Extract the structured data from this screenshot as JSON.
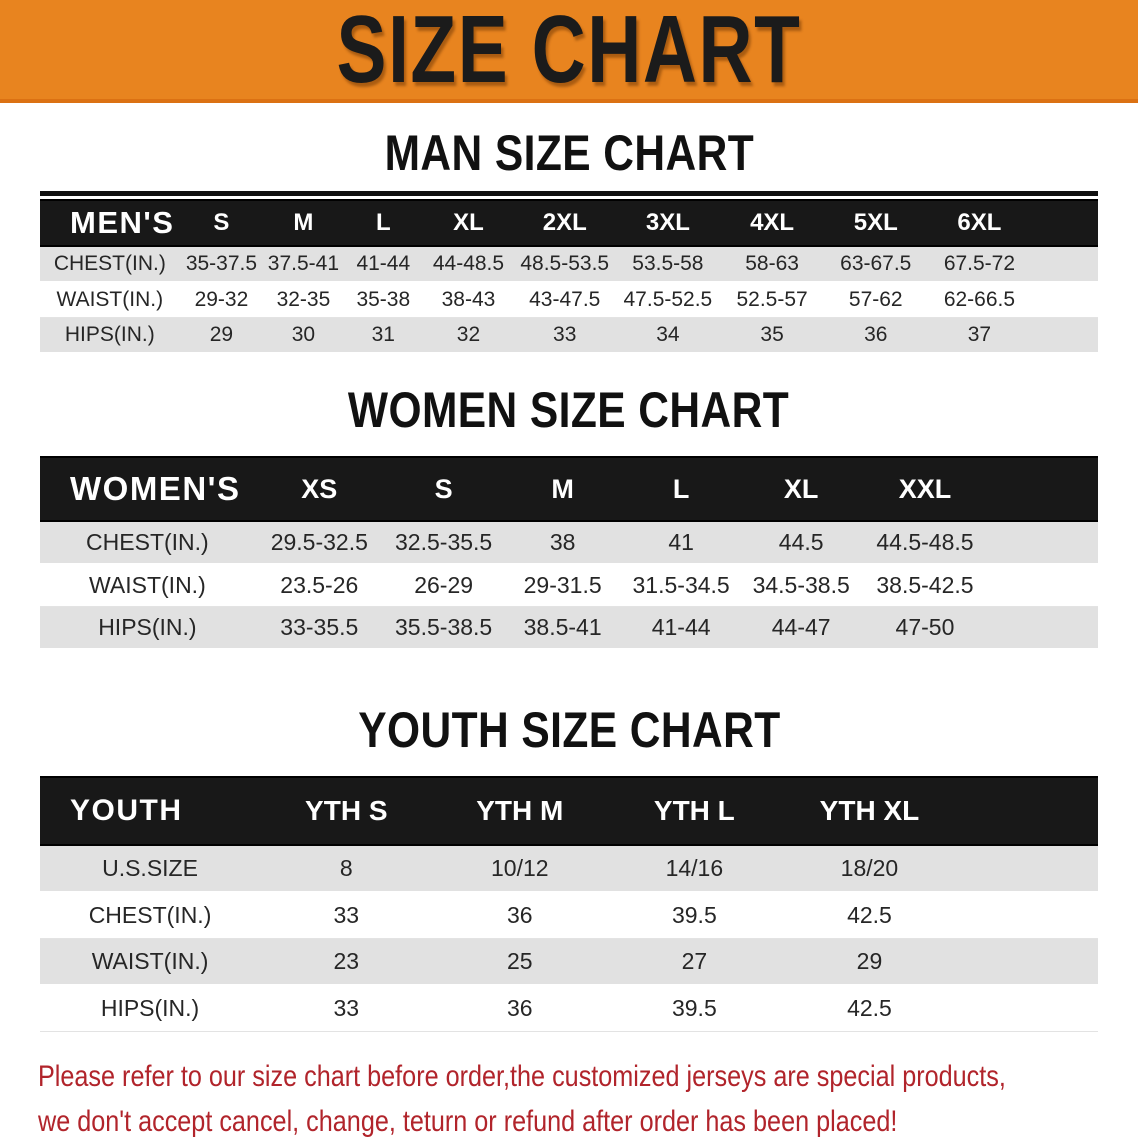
{
  "banner": {
    "title": "SIZE CHART",
    "bg_color": "#E8841F",
    "text_color": "#1b1b1b"
  },
  "sections": {
    "man": {
      "heading": "MAN SIZE CHART"
    },
    "women": {
      "heading": "WOMEN SIZE CHART"
    },
    "youth": {
      "heading": "YOUTH SIZE CHART"
    }
  },
  "colors": {
    "table_header_bg": "#181818",
    "row_gray": "#E1E1E1",
    "disclaimer_red": "#B1242B"
  },
  "tables": {
    "men": {
      "corner": "MEN'S",
      "sizes": [
        "S",
        "M",
        "L",
        "XL",
        "2XL",
        "3XL",
        "4XL",
        "5XL",
        "6XL"
      ],
      "rows": [
        {
          "label": "CHEST(IN.)",
          "shade": "gray",
          "values": [
            "35-37.5",
            "37.5-41",
            "41-44",
            "44-48.5",
            "48.5-53.5",
            "53.5-58",
            "58-63",
            "63-67.5",
            "67.5-72"
          ]
        },
        {
          "label": "WAIST(IN.)",
          "shade": "white",
          "values": [
            "29-32",
            "32-35",
            "35-38",
            "38-43",
            "43-47.5",
            "47.5-52.5",
            "52.5-57",
            "57-62",
            "62-66.5"
          ]
        },
        {
          "label": "HIPS(IN.)",
          "shade": "gray",
          "values": [
            "29",
            "30",
            "31",
            "32",
            "33",
            "34",
            "35",
            "36",
            "37"
          ]
        }
      ]
    },
    "women": {
      "corner": "WOMEN'S",
      "sizes": [
        "XS",
        "S",
        "M",
        "L",
        "XL",
        "XXL"
      ],
      "rows": [
        {
          "label": "CHEST(IN.)",
          "shade": "gray",
          "values": [
            "29.5-32.5",
            "32.5-35.5",
            "38",
            "41",
            "44.5",
            "44.5-48.5"
          ]
        },
        {
          "label": "WAIST(IN.)",
          "shade": "white",
          "values": [
            "23.5-26",
            "26-29",
            "29-31.5",
            "31.5-34.5",
            "34.5-38.5",
            "38.5-42.5"
          ]
        },
        {
          "label": "HIPS(IN.)",
          "shade": "gray",
          "values": [
            "33-35.5",
            "35.5-38.5",
            "38.5-41",
            "41-44",
            "44-47",
            "47-50"
          ]
        }
      ]
    },
    "youth": {
      "corner": "YOUTH",
      "sizes": [
        "YTH S",
        "YTH M",
        "YTH L",
        "YTH XL"
      ],
      "rows": [
        {
          "label": "U.S.SIZE",
          "shade": "gray",
          "values": [
            "8",
            "10/12",
            "14/16",
            "18/20"
          ]
        },
        {
          "label": "CHEST(IN.)",
          "shade": "white",
          "values": [
            "33",
            "36",
            "39.5",
            "42.5"
          ]
        },
        {
          "label": "WAIST(IN.)",
          "shade": "gray",
          "values": [
            "23",
            "25",
            "27",
            "29"
          ]
        },
        {
          "label": "HIPS(IN.)",
          "shade": "white",
          "values": [
            "33",
            "36",
            "39.5",
            "42.5"
          ]
        }
      ]
    }
  },
  "disclaimer": {
    "line1": "Please refer to our size chart before order,the customized jerseys are special products,",
    "line2": "we don't accept cancel, change, teturn or refund after order has been placed!"
  }
}
